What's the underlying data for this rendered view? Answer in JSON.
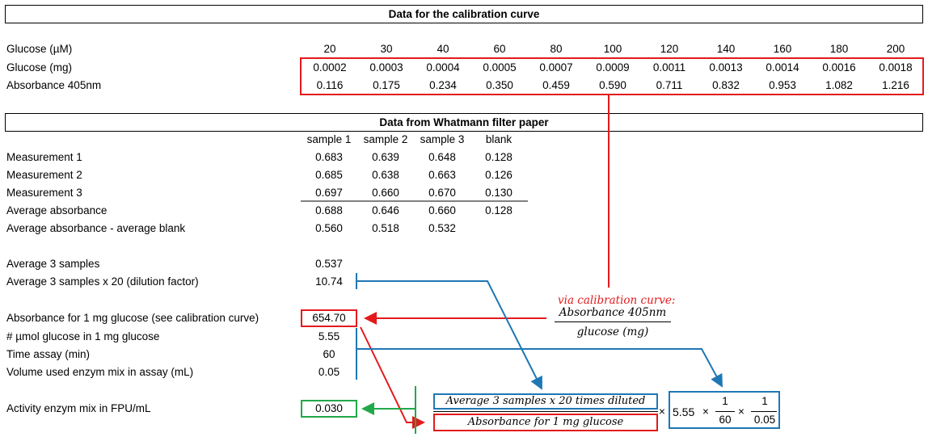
{
  "calibration": {
    "title": "Data for the calibration curve",
    "rows": [
      {
        "label": "Glucose (µM)",
        "values": [
          "20",
          "30",
          "40",
          "60",
          "80",
          "100",
          "120",
          "140",
          "160",
          "180",
          "200"
        ]
      },
      {
        "label": "Glucose (mg)",
        "values": [
          "0.0002",
          "0.0003",
          "0.0004",
          "0.0005",
          "0.0007",
          "0.0009",
          "0.0011",
          "0.0013",
          "0.0014",
          "0.0016",
          "0.0018"
        ]
      },
      {
        "label": "Absorbance 405nm",
        "values": [
          "0.116",
          "0.175",
          "0.234",
          "0.350",
          "0.459",
          "0.590",
          "0.711",
          "0.832",
          "0.953",
          "1.082",
          "1.216"
        ]
      }
    ]
  },
  "whatmann": {
    "title": "Data from Whatmann filter paper",
    "columns": [
      "sample 1",
      "sample 2",
      "sample 3",
      "blank"
    ],
    "rows": [
      {
        "label": "Measurement 1",
        "values": [
          "0.683",
          "0.639",
          "0.648",
          "0.128"
        ]
      },
      {
        "label": "Measurement 2",
        "values": [
          "0.685",
          "0.638",
          "0.663",
          "0.126"
        ]
      },
      {
        "label": "Measurement 3",
        "values": [
          "0.697",
          "0.660",
          "0.670",
          "0.130"
        ]
      },
      {
        "label": "Average absorbance",
        "values": [
          "0.688",
          "0.646",
          "0.660",
          "0.128"
        ]
      },
      {
        "label": "Average absorbance - average blank",
        "values": [
          "0.560",
          "0.518",
          "0.532",
          ""
        ]
      }
    ]
  },
  "summary": {
    "avg3_label": "Average 3 samples",
    "avg3_value": "0.537",
    "avg3x20_label": "Average 3 samples x 20 (dilution factor)",
    "avg3x20_value": "10.74"
  },
  "params": {
    "abs1mg_label": "Absorbance for 1 mg glucose (see calibration curve)",
    "abs1mg_value": "654.70",
    "umol_label": "# µmol glucose in 1 mg glucose",
    "umol_value": "5.55",
    "time_label": "Time assay (min)",
    "time_value": "60",
    "volume_label": "Volume used enzym mix in assay (mL)",
    "volume_value": "0.05"
  },
  "activity": {
    "label": "Activity enzym mix in FPU/mL",
    "value": "0.030"
  },
  "calibration_note": {
    "via": "via calibration curve:",
    "numerator": "Absorbance 405nm",
    "denominator": "glucose (mg)"
  },
  "formula": {
    "numerator": "Average 3 samples x 20 times diluted",
    "denominator": "Absorbance for 1 mg glucose",
    "times": "×",
    "factor": "5.55",
    "frac1_num": "1",
    "frac1_den": "60",
    "frac2_num": "1",
    "frac2_den": "0.05"
  },
  "colors": {
    "red": "#e31a1c",
    "blue": "#1f77b4",
    "green": "#22a84a"
  }
}
